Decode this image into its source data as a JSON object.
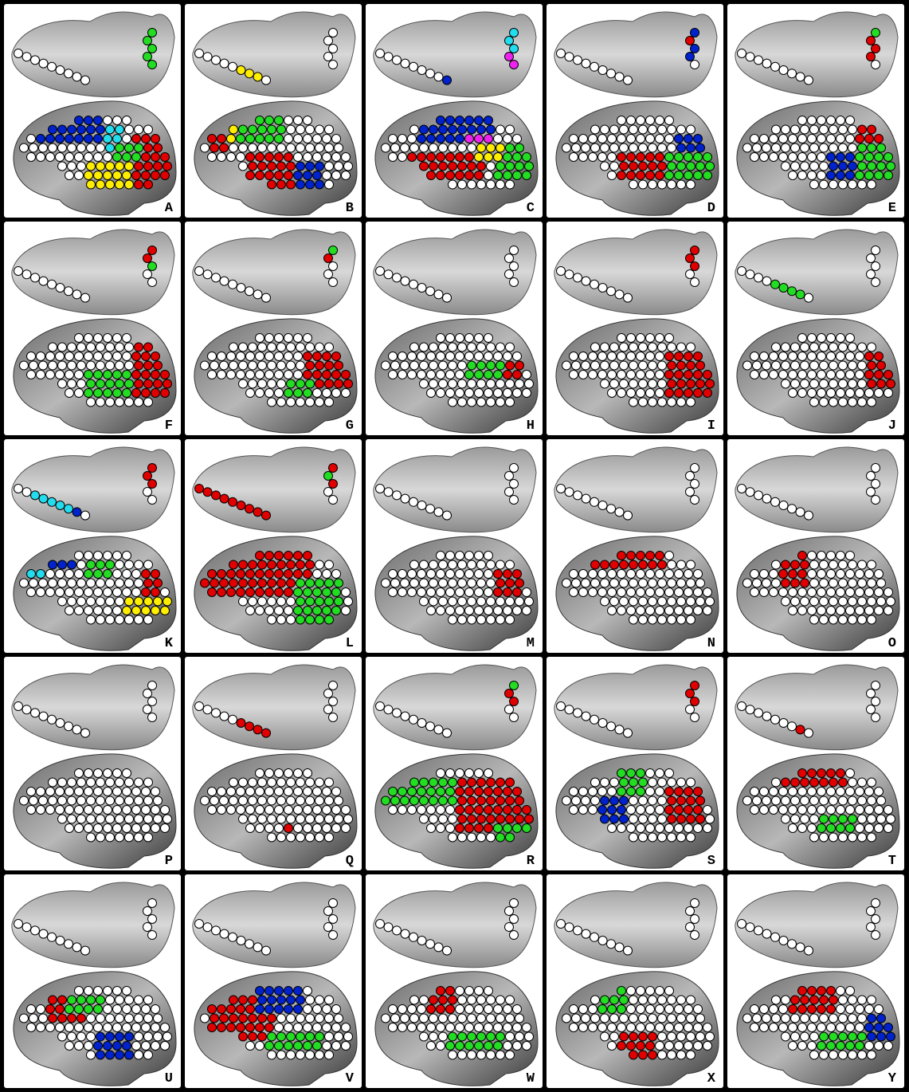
{
  "panels": [
    {
      "label": "A"
    },
    {
      "label": "B"
    },
    {
      "label": "C"
    },
    {
      "label": "D"
    },
    {
      "label": "E"
    },
    {
      "label": "F"
    },
    {
      "label": "G"
    },
    {
      "label": "H"
    },
    {
      "label": "I"
    },
    {
      "label": "J"
    },
    {
      "label": "K"
    },
    {
      "label": "L"
    },
    {
      "label": "M"
    },
    {
      "label": "N"
    },
    {
      "label": "O"
    },
    {
      "label": "P"
    },
    {
      "label": "Q"
    },
    {
      "label": "R"
    },
    {
      "label": "S"
    },
    {
      "label": "T"
    },
    {
      "label": "U"
    },
    {
      "label": "V"
    },
    {
      "label": "W"
    },
    {
      "label": "X"
    },
    {
      "label": "Y"
    }
  ]
}
